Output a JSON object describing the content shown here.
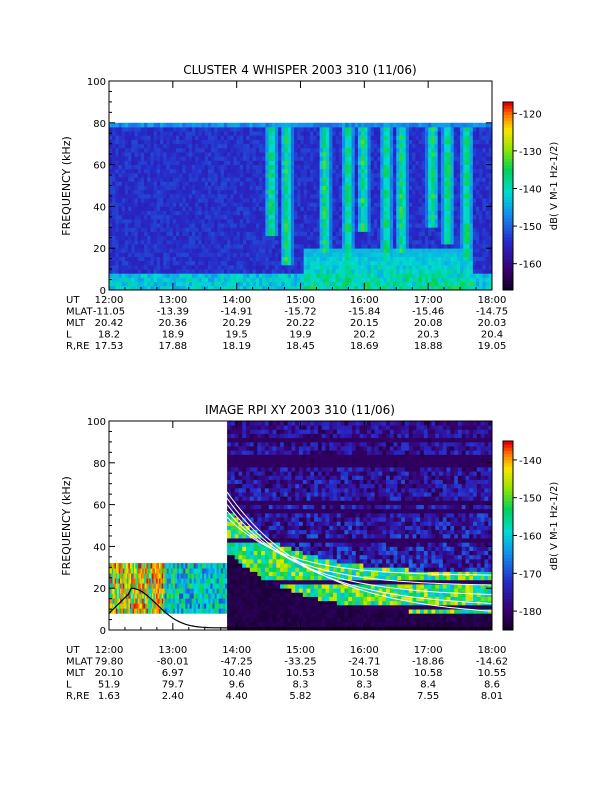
{
  "chart_data": [
    {
      "type": "heatmap",
      "title": "CLUSTER 4 WHISPER 2003 310 (11/06)",
      "ylabel": "FREQUENCY (kHz)",
      "ylim": [
        0,
        100
      ],
      "yticks": [
        "0",
        "20",
        "40",
        "60",
        "80",
        "100"
      ],
      "xlim_hours": [
        12,
        18
      ],
      "colorbar": {
        "label": "dB( V M⁻¹ Hz⁻¹ᐟ²)",
        "label_plain": "dB( V M-1 Hz-1/2)",
        "range": [
          -167,
          -117
        ],
        "ticks": [
          "-120",
          "-130",
          "-140",
          "-150",
          "-160"
        ],
        "tick_values": [
          -120,
          -130,
          -140,
          -150,
          -160
        ]
      },
      "data_top_khz": 80,
      "ephemeris": {
        "row_labels": [
          "UT",
          "MLAT",
          "MLT",
          "L",
          "R,RE"
        ],
        "columns": [
          [
            "12:00",
            "-11.05",
            "20.42",
            "18.2",
            "17.53"
          ],
          [
            "13:00",
            "-13.39",
            "20.36",
            "18.9",
            "17.88"
          ],
          [
            "14:00",
            "-14.91",
            "20.29",
            "19.5",
            "18.19"
          ],
          [
            "15:00",
            "-15.72",
            "20.22",
            "19.9",
            "18.45"
          ],
          [
            "16:00",
            "-15.84",
            "20.15",
            "20.2",
            "18.69"
          ],
          [
            "17:00",
            "-15.46",
            "20.08",
            "20.3",
            "18.88"
          ],
          [
            "18:00",
            "-14.75",
            "20.03",
            "20.4",
            "19.05"
          ]
        ]
      }
    },
    {
      "type": "heatmap",
      "title": "IMAGE RPI XY 2003 310 (11/06)",
      "ylabel": "FREQUENCY (kHz)",
      "ylim": [
        0,
        100
      ],
      "yticks": [
        "0",
        "20",
        "40",
        "60",
        "80",
        "100"
      ],
      "xlim_hours": [
        12,
        18
      ],
      "colorbar": {
        "label_plain": "dB( V M-1 Hz-1/2)",
        "range": [
          -185,
          -135
        ],
        "ticks": [
          "-140",
          "-150",
          "-160",
          "-170",
          "-180"
        ],
        "tick_values": [
          -140,
          -150,
          -160,
          -170,
          -180
        ]
      },
      "early_band_khz": [
        8,
        32
      ],
      "early_end_hour": 13.85,
      "ephemeris": {
        "row_labels": [
          "UT",
          "MLAT",
          "MLT",
          "L",
          "R,RE"
        ],
        "columns": [
          [
            "12:00",
            "79.80",
            "20.10",
            "51.9",
            "1.63"
          ],
          [
            "13:00",
            "-80.01",
            "6.97",
            "79.7",
            "2.40"
          ],
          [
            "14:00",
            "-47.25",
            "10.40",
            "9.6",
            "4.40"
          ],
          [
            "15:00",
            "-33.25",
            "10.53",
            "8.3",
            "5.82"
          ],
          [
            "16:00",
            "-24.71",
            "10.58",
            "8.3",
            "6.84"
          ],
          [
            "17:00",
            "-18.86",
            "10.58",
            "8.4",
            "7.55"
          ],
          [
            "18:00",
            "-14.62",
            "10.55",
            "8.6",
            "8.01"
          ]
        ]
      }
    }
  ]
}
